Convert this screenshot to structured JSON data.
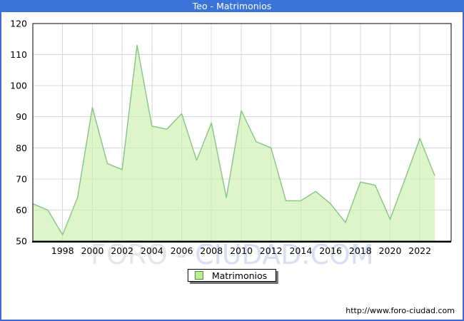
{
  "window": {
    "title": "Teo - Matrimonios"
  },
  "chart_data": {
    "type": "area",
    "title": "Teo - Matrimonios",
    "series_name": "Matrimonios",
    "x": [
      1996,
      1997,
      1998,
      1999,
      2000,
      2001,
      2002,
      2003,
      2004,
      2005,
      2006,
      2007,
      2008,
      2009,
      2010,
      2011,
      2012,
      2013,
      2014,
      2015,
      2016,
      2017,
      2018,
      2019,
      2020,
      2021,
      2022,
      2023
    ],
    "values": [
      62,
      60,
      52,
      64,
      93,
      75,
      73,
      113,
      87,
      86,
      91,
      76,
      88,
      64,
      92,
      82,
      80,
      63,
      63,
      66,
      62,
      56,
      69,
      68,
      57,
      70,
      83,
      71
    ],
    "xlabel": "",
    "ylabel": "",
    "ylim": [
      50,
      120
    ],
    "xlim": [
      1996,
      2024.1
    ],
    "yticks": [
      50,
      60,
      70,
      80,
      90,
      100,
      110,
      120
    ],
    "xticks": [
      1998,
      2000,
      2002,
      2004,
      2006,
      2008,
      2010,
      2012,
      2014,
      2016,
      2018,
      2020,
      2022
    ],
    "grid": true,
    "legend_position": "bottom-center",
    "colors": {
      "area_fill": "#cdefad",
      "area_opacity": 0.65,
      "line": "#84c584",
      "grid": "#d8d8d8",
      "frame": "#000000",
      "tick_text": "#000000"
    }
  },
  "watermark": {
    "part1": "FORO",
    "separator": " - ",
    "part2": "CIUDAD.COM"
  },
  "footer": {
    "url": "http://www.foro-ciudad.com"
  },
  "theme": {
    "titlebar_bg": "#3b74d8",
    "titlebar_text": "#ffffff",
    "border": "#4068d4"
  }
}
